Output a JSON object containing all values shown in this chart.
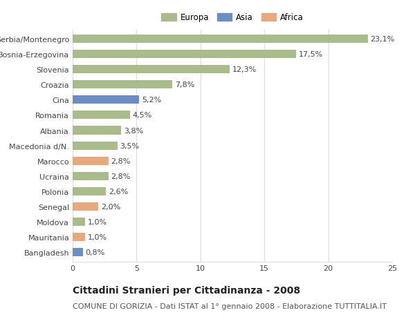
{
  "categories": [
    "Serbia/Montenegro",
    "Bosnia-Erzegovina",
    "Slovenia",
    "Croazia",
    "Cina",
    "Romania",
    "Albania",
    "Macedonia d/N.",
    "Marocco",
    "Ucraina",
    "Polonia",
    "Senegal",
    "Moldova",
    "Mauritania",
    "Bangladesh"
  ],
  "values": [
    23.1,
    17.5,
    12.3,
    7.8,
    5.2,
    4.5,
    3.8,
    3.5,
    2.8,
    2.8,
    2.6,
    2.0,
    1.0,
    1.0,
    0.8
  ],
  "labels": [
    "23,1%",
    "17,5%",
    "12,3%",
    "7,8%",
    "5,2%",
    "4,5%",
    "3,8%",
    "3,5%",
    "2,8%",
    "2,8%",
    "2,6%",
    "2,0%",
    "1,0%",
    "1,0%",
    "0,8%"
  ],
  "colors": [
    "#a8bb8a",
    "#a8bb8a",
    "#a8bb8a",
    "#a8bb8a",
    "#6d8ec4",
    "#a8bb8a",
    "#a8bb8a",
    "#a8bb8a",
    "#e8a87c",
    "#a8bb8a",
    "#a8bb8a",
    "#e8a87c",
    "#a8bb8a",
    "#e8a87c",
    "#6d8ec4"
  ],
  "legend_labels": [
    "Europa",
    "Asia",
    "Africa"
  ],
  "legend_colors": [
    "#a8bb8a",
    "#6d8ec4",
    "#e8a87c"
  ],
  "title": "Cittadini Stranieri per Cittadinanza - 2008",
  "subtitle": "COMUNE DI GORIZIA - Dati ISTAT al 1° gennaio 2008 - Elaborazione TUTTITALIA.IT",
  "xlim": [
    0,
    25
  ],
  "xticks": [
    0,
    5,
    10,
    15,
    20,
    25
  ],
  "background_color": "#ffffff",
  "grid_color": "#dddddd",
  "bar_height": 0.55,
  "title_fontsize": 10,
  "subtitle_fontsize": 8,
  "tick_fontsize": 8,
  "value_fontsize": 8
}
